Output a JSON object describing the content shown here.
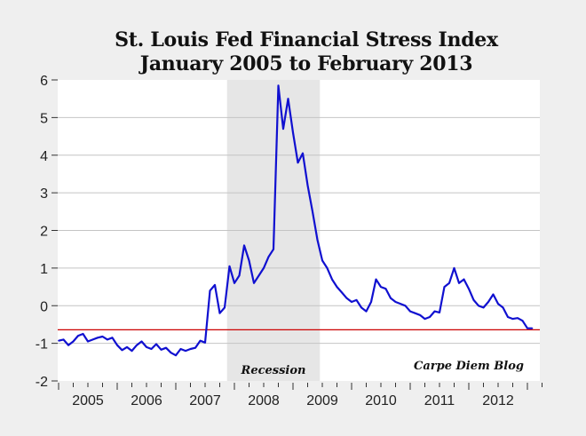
{
  "chart_data": {
    "type": "line",
    "title": "St. Louis Fed Financial Stress Index",
    "subtitle": "January 2005 to February 2013",
    "xlabel": "",
    "ylabel": "",
    "ylim": [
      -2,
      6
    ],
    "yticks": [
      -2,
      -1,
      0,
      1,
      2,
      3,
      4,
      5,
      6
    ],
    "xticks": [
      "2005",
      "2006",
      "2007",
      "2008",
      "2009",
      "2010",
      "2011",
      "2012"
    ],
    "grid": "horizontal",
    "x_start": "2005-01",
    "x_end": "2013-02",
    "frequency": "monthly",
    "series": [
      {
        "color": "#1010d0",
        "values": [
          -0.93,
          -0.9,
          -1.05,
          -0.95,
          -0.8,
          -0.75,
          -0.95,
          -0.9,
          -0.85,
          -0.82,
          -0.9,
          -0.85,
          -1.05,
          -1.18,
          -1.1,
          -1.2,
          -1.05,
          -0.95,
          -1.1,
          -1.15,
          -1.02,
          -1.17,
          -1.12,
          -1.25,
          -1.32,
          -1.15,
          -1.2,
          -1.15,
          -1.12,
          -0.93,
          -0.98,
          0.4,
          0.55,
          -0.2,
          -0.05,
          1.05,
          0.6,
          0.8,
          1.6,
          1.2,
          0.6,
          0.8,
          1.0,
          1.3,
          1.5,
          5.85,
          4.7,
          5.5,
          4.6,
          3.8,
          4.05,
          3.2,
          2.5,
          1.75,
          1.2,
          1.0,
          0.7,
          0.5,
          0.35,
          0.2,
          0.1,
          0.15,
          -0.05,
          -0.15,
          0.1,
          0.7,
          0.5,
          0.45,
          0.2,
          0.1,
          0.05,
          0.0,
          -0.15,
          -0.2,
          -0.25,
          -0.35,
          -0.3,
          -0.15,
          -0.18,
          0.5,
          0.6,
          1.0,
          0.6,
          0.7,
          0.45,
          0.15,
          0.0,
          -0.05,
          0.1,
          0.3,
          0.05,
          -0.05,
          -0.3,
          -0.35,
          -0.33,
          -0.4,
          -0.6,
          -0.6
        ]
      }
    ],
    "reference_line": {
      "value": -0.64,
      "color": "#cc0000"
    },
    "shaded_region": {
      "start": "2007-12",
      "end": "2009-06",
      "label": "Recession",
      "color": "#e6e6e6"
    },
    "annotations": [
      "Carpe Diem Blog"
    ]
  }
}
